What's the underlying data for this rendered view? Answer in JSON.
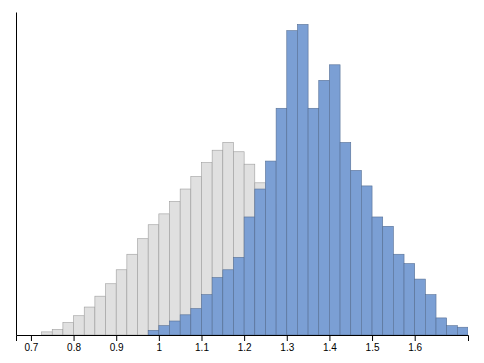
{
  "chart_data": {
    "type": "histogram",
    "series": [
      {
        "color": "#e0e0e0",
        "bins": [
          0.725,
          0.75,
          0.775,
          0.8,
          0.825,
          0.85,
          0.875,
          0.9,
          0.925,
          0.95,
          0.975,
          1,
          1.025,
          1.05,
          1.075,
          1.1,
          1.125,
          1.15,
          1.175,
          1.2,
          1.225,
          1.25,
          1.275
        ],
        "values": [
          0.01,
          0.018,
          0.04,
          0.062,
          0.09,
          0.125,
          0.165,
          0.21,
          0.26,
          0.31,
          0.355,
          0.39,
          0.43,
          0.47,
          0.51,
          0.555,
          0.595,
          0.62,
          0.59,
          0.55,
          0.49,
          0.42
        ]
      },
      {
        "color": "#7b9fd4",
        "bins": [
          0.975,
          1,
          1.025,
          1.05,
          1.075,
          1.1,
          1.125,
          1.15,
          1.175,
          1.2,
          1.225,
          1.25,
          1.275,
          1.3,
          1.325,
          1.35,
          1.375,
          1.4,
          1.425,
          1.45,
          1.475,
          1.5,
          1.525,
          1.55,
          1.575,
          1.6,
          1.625,
          1.65,
          1.675,
          1.7,
          1.725
        ],
        "values": [
          0.015,
          0.03,
          0.045,
          0.065,
          0.085,
          0.13,
          0.185,
          0.21,
          0.25,
          0.38,
          0.47,
          0.56,
          0.73,
          0.98,
          1.0,
          0.73,
          0.82,
          0.87,
          0.62,
          0.53,
          0.48,
          0.38,
          0.35,
          0.26,
          0.23,
          0.18,
          0.13,
          0.055,
          0.03,
          0.025
        ]
      }
    ],
    "xlim": [
      0.665,
      1.725
    ],
    "ylim": [
      0,
      1.04
    ],
    "xticks": [
      0.7,
      0.8,
      0.9,
      1,
      1.1,
      1.2,
      1.3,
      1.4,
      1.5,
      1.6
    ],
    "tick_labels": "x"
  }
}
